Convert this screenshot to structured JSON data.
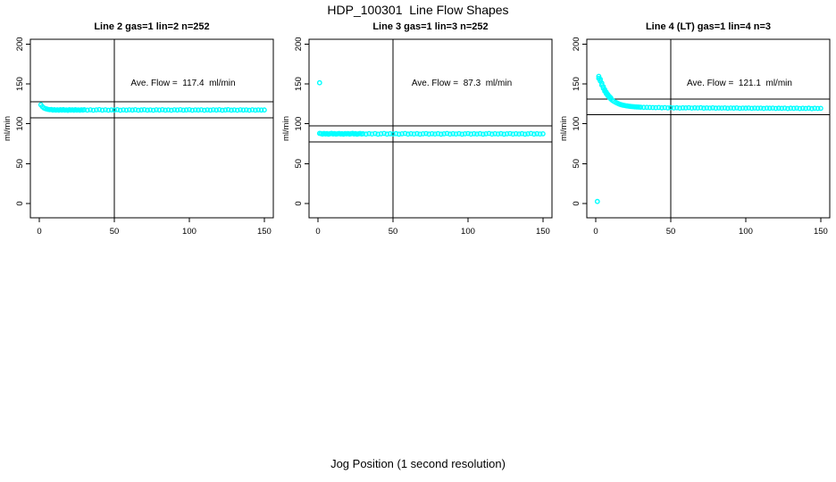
{
  "figure": {
    "title": "HDP_100301  Line Flow Shapes",
    "xlabel": "Jog Position (1 second resolution)"
  },
  "colors": {
    "points": "#00ffff",
    "axis": "#000000",
    "background": "#ffffff"
  },
  "chart_data": [
    {
      "type": "scatter",
      "title": "Line 2 gas=1 lin=2 n=252",
      "annotation": "Ave. Flow =  117.4  ml/min",
      "ave_flow": 117.4,
      "ylabel": "ml/min",
      "x_ticks": [
        0,
        50,
        100,
        150
      ],
      "y_ticks": [
        0,
        50,
        100,
        150,
        200
      ],
      "xlim": [
        -6,
        156
      ],
      "ylim": [
        -18,
        206
      ],
      "vline_x": 50,
      "hlines": [
        127.4,
        107.4
      ],
      "points": [
        [
          1,
          123.8
        ],
        [
          2,
          121.4
        ],
        [
          3,
          119.9
        ],
        [
          4,
          119.0
        ],
        [
          5,
          118.4
        ],
        [
          6,
          118.0
        ],
        [
          7,
          117.7
        ],
        [
          8,
          117.9
        ],
        [
          9,
          117.2
        ],
        [
          10,
          117.6
        ],
        [
          11,
          117.1
        ],
        [
          12,
          117.5
        ],
        [
          13,
          117.0
        ],
        [
          14,
          117.6
        ],
        [
          15,
          117.2
        ],
        [
          16,
          117.7
        ],
        [
          17,
          117.1
        ],
        [
          18,
          117.4
        ],
        [
          19,
          116.9
        ],
        [
          20,
          117.6
        ],
        [
          21,
          117.2
        ],
        [
          22,
          117.5
        ],
        [
          23,
          117.0
        ],
        [
          24,
          117.6
        ],
        [
          25,
          117.1
        ],
        [
          26,
          117.4
        ],
        [
          27,
          117.0
        ],
        [
          28,
          117.5
        ],
        [
          29,
          117.2
        ],
        [
          30,
          117.6
        ],
        [
          32,
          117.1
        ],
        [
          34,
          117.5
        ],
        [
          36,
          117.0
        ],
        [
          38,
          117.4
        ],
        [
          40,
          117.7
        ],
        [
          42,
          117.1
        ],
        [
          44,
          117.5
        ],
        [
          46,
          117.0
        ],
        [
          48,
          117.4
        ],
        [
          50,
          117.2
        ],
        [
          52,
          117.6
        ],
        [
          54,
          117.0
        ],
        [
          56,
          117.4
        ],
        [
          58,
          117.1
        ],
        [
          60,
          117.5
        ],
        [
          62,
          117.2
        ],
        [
          64,
          117.6
        ],
        [
          66,
          117.0
        ],
        [
          68,
          117.3
        ],
        [
          70,
          117.6
        ],
        [
          72,
          117.1
        ],
        [
          74,
          117.4
        ],
        [
          76,
          117.0
        ],
        [
          78,
          117.5
        ],
        [
          80,
          117.2
        ],
        [
          82,
          117.6
        ],
        [
          84,
          117.1
        ],
        [
          86,
          117.4
        ],
        [
          88,
          117.0
        ],
        [
          90,
          117.5
        ],
        [
          92,
          117.2
        ],
        [
          94,
          117.6
        ],
        [
          96,
          117.1
        ],
        [
          98,
          117.3
        ],
        [
          100,
          117.6
        ],
        [
          102,
          117.0
        ],
        [
          104,
          117.4
        ],
        [
          106,
          117.2
        ],
        [
          108,
          117.5
        ],
        [
          110,
          117.0
        ],
        [
          112,
          117.4
        ],
        [
          114,
          117.1
        ],
        [
          116,
          117.5
        ],
        [
          118,
          117.2
        ],
        [
          120,
          117.6
        ],
        [
          122,
          117.0
        ],
        [
          124,
          117.3
        ],
        [
          126,
          117.6
        ],
        [
          128,
          117.1
        ],
        [
          130,
          117.4
        ],
        [
          132,
          117.0
        ],
        [
          134,
          117.5
        ],
        [
          136,
          117.2
        ],
        [
          138,
          117.4
        ],
        [
          140,
          117.0
        ],
        [
          142,
          117.5
        ],
        [
          144,
          117.1
        ],
        [
          146,
          117.4
        ],
        [
          148,
          117.2
        ],
        [
          150,
          117.3
        ]
      ]
    },
    {
      "type": "scatter",
      "title": "Line 3 gas=1 lin=3 n=252",
      "annotation": "Ave. Flow =  87.3  ml/min",
      "ave_flow": 87.3,
      "ylabel": "ml/min",
      "x_ticks": [
        0,
        50,
        100,
        150
      ],
      "y_ticks": [
        0,
        50,
        100,
        150,
        200
      ],
      "xlim": [
        -6,
        156
      ],
      "ylim": [
        -18,
        206
      ],
      "vline_x": 50,
      "hlines": [
        97.3,
        77.3
      ],
      "points": [
        [
          1,
          151.5
        ],
        [
          1,
          88.0
        ],
        [
          2,
          87.6
        ],
        [
          3,
          87.1
        ],
        [
          4,
          87.8
        ],
        [
          5,
          87.2
        ],
        [
          6,
          87.6
        ],
        [
          7,
          87.0
        ],
        [
          8,
          87.5
        ],
        [
          9,
          87.9
        ],
        [
          10,
          87.2
        ],
        [
          11,
          87.6
        ],
        [
          12,
          87.1
        ],
        [
          13,
          87.4
        ],
        [
          14,
          87.8
        ],
        [
          15,
          87.2
        ],
        [
          16,
          87.5
        ],
        [
          17,
          87.0
        ],
        [
          18,
          87.6
        ],
        [
          19,
          87.3
        ],
        [
          20,
          87.7
        ],
        [
          21,
          87.1
        ],
        [
          22,
          87.5
        ],
        [
          23,
          87.9
        ],
        [
          24,
          87.2
        ],
        [
          25,
          87.6
        ],
        [
          26,
          87.0
        ],
        [
          27,
          87.4
        ],
        [
          28,
          87.8
        ],
        [
          29,
          87.2
        ],
        [
          30,
          87.5
        ],
        [
          32,
          87.1
        ],
        [
          34,
          87.6
        ],
        [
          36,
          87.2
        ],
        [
          38,
          87.7
        ],
        [
          40,
          87.0
        ],
        [
          42,
          87.4
        ],
        [
          44,
          87.8
        ],
        [
          46,
          87.1
        ],
        [
          48,
          87.5
        ],
        [
          50,
          87.2
        ],
        [
          52,
          87.6
        ],
        [
          54,
          87.0
        ],
        [
          56,
          87.4
        ],
        [
          58,
          87.8
        ],
        [
          60,
          87.1
        ],
        [
          62,
          87.5
        ],
        [
          64,
          87.2
        ],
        [
          66,
          87.6
        ],
        [
          68,
          87.0
        ],
        [
          70,
          87.4
        ],
        [
          72,
          87.7
        ],
        [
          74,
          87.1
        ],
        [
          76,
          87.5
        ],
        [
          78,
          87.2
        ],
        [
          80,
          87.6
        ],
        [
          82,
          87.0
        ],
        [
          84,
          87.4
        ],
        [
          86,
          87.8
        ],
        [
          88,
          87.1
        ],
        [
          90,
          87.5
        ],
        [
          92,
          87.2
        ],
        [
          94,
          87.6
        ],
        [
          96,
          87.0
        ],
        [
          98,
          87.4
        ],
        [
          100,
          87.7
        ],
        [
          102,
          87.1
        ],
        [
          104,
          87.5
        ],
        [
          106,
          87.2
        ],
        [
          108,
          87.6
        ],
        [
          110,
          87.0
        ],
        [
          112,
          87.4
        ],
        [
          114,
          87.8
        ],
        [
          116,
          87.1
        ],
        [
          118,
          87.5
        ],
        [
          120,
          87.2
        ],
        [
          122,
          87.6
        ],
        [
          124,
          87.0
        ],
        [
          126,
          87.4
        ],
        [
          128,
          87.7
        ],
        [
          130,
          87.1
        ],
        [
          132,
          87.5
        ],
        [
          134,
          87.2
        ],
        [
          136,
          87.6
        ],
        [
          138,
          87.0
        ],
        [
          140,
          87.4
        ],
        [
          142,
          87.8
        ],
        [
          144,
          87.1
        ],
        [
          146,
          87.5
        ],
        [
          148,
          87.2
        ],
        [
          150,
          87.4
        ]
      ]
    },
    {
      "type": "scatter",
      "title": "Line 4 (LT) gas=1 lin=4 n=3",
      "annotation": "Ave. Flow =  121.1  ml/min",
      "ave_flow": 121.1,
      "ylabel": "ml/min",
      "x_ticks": [
        0,
        50,
        100,
        150
      ],
      "y_ticks": [
        0,
        50,
        100,
        150,
        200
      ],
      "xlim": [
        -6,
        156
      ],
      "ylim": [
        -18,
        206
      ],
      "vline_x": 50,
      "hlines": [
        131.1,
        111.1
      ],
      "points": [
        [
          1,
          2.5
        ],
        [
          2,
          159.5
        ],
        [
          2,
          157.0
        ],
        [
          3,
          153.6
        ],
        [
          3,
          155.8
        ],
        [
          4,
          148.6
        ],
        [
          4,
          151.0
        ],
        [
          5,
          144.4
        ],
        [
          5,
          146.5
        ],
        [
          6,
          140.8
        ],
        [
          6,
          142.8
        ],
        [
          7,
          137.8
        ],
        [
          7,
          139.6
        ],
        [
          8,
          135.2
        ],
        [
          8,
          136.8
        ],
        [
          9,
          133.0
        ],
        [
          9,
          134.4
        ],
        [
          10,
          131.1
        ],
        [
          10,
          132.4
        ],
        [
          11,
          129.5
        ],
        [
          12,
          128.2
        ],
        [
          13,
          127.0
        ],
        [
          14,
          126.1
        ],
        [
          15,
          125.2
        ],
        [
          16,
          124.5
        ],
        [
          17,
          123.9
        ],
        [
          18,
          123.4
        ],
        [
          19,
          123.0
        ],
        [
          20,
          122.6
        ],
        [
          21,
          122.3
        ],
        [
          22,
          122.0
        ],
        [
          23,
          121.8
        ],
        [
          24,
          121.6
        ],
        [
          25,
          121.4
        ],
        [
          26,
          121.2
        ],
        [
          27,
          121.1
        ],
        [
          28,
          121.0
        ],
        [
          29,
          120.9
        ],
        [
          30,
          120.8
        ],
        [
          32,
          120.6
        ],
        [
          34,
          120.5
        ],
        [
          36,
          120.4
        ],
        [
          38,
          120.3
        ],
        [
          40,
          120.2
        ],
        [
          42,
          120.4
        ],
        [
          44,
          120.0
        ],
        [
          46,
          120.3
        ],
        [
          48,
          119.9
        ],
        [
          50,
          120.2
        ],
        [
          52,
          119.8
        ],
        [
          54,
          120.1
        ],
        [
          56,
          119.7
        ],
        [
          58,
          120.0
        ],
        [
          60,
          119.9
        ],
        [
          62,
          120.2
        ],
        [
          64,
          119.6
        ],
        [
          66,
          120.0
        ],
        [
          68,
          119.8
        ],
        [
          70,
          120.1
        ],
        [
          72,
          119.5
        ],
        [
          74,
          119.9
        ],
        [
          76,
          119.7
        ],
        [
          78,
          120.0
        ],
        [
          80,
          119.5
        ],
        [
          82,
          119.8
        ],
        [
          84,
          119.6
        ],
        [
          86,
          119.9
        ],
        [
          88,
          119.4
        ],
        [
          90,
          119.8
        ],
        [
          92,
          119.5
        ],
        [
          94,
          119.9
        ],
        [
          96,
          119.3
        ],
        [
          98,
          119.7
        ],
        [
          100,
          119.5
        ],
        [
          102,
          119.8
        ],
        [
          104,
          119.3
        ],
        [
          106,
          119.6
        ],
        [
          108,
          119.4
        ],
        [
          110,
          119.7
        ],
        [
          112,
          119.2
        ],
        [
          114,
          119.6
        ],
        [
          116,
          119.4
        ],
        [
          118,
          119.7
        ],
        [
          120,
          119.2
        ],
        [
          122,
          119.5
        ],
        [
          124,
          119.3
        ],
        [
          126,
          119.6
        ],
        [
          128,
          119.1
        ],
        [
          130,
          119.5
        ],
        [
          132,
          119.3
        ],
        [
          134,
          119.6
        ],
        [
          136,
          119.1
        ],
        [
          138,
          119.4
        ],
        [
          140,
          119.2
        ],
        [
          142,
          119.5
        ],
        [
          144,
          119.0
        ],
        [
          146,
          119.4
        ],
        [
          148,
          119.2
        ],
        [
          150,
          119.3
        ]
      ]
    }
  ]
}
